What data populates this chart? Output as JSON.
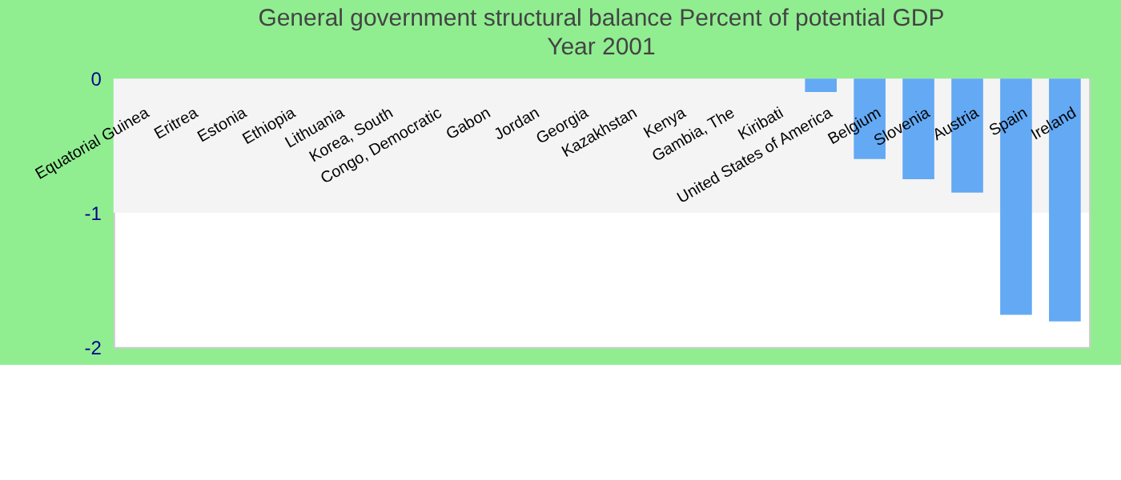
{
  "chart_data": {
    "type": "bar",
    "title": "General government structural balance  Percent of potential GDP",
    "subtitle": "Year 2001",
    "categories": [
      "Equatorial Guinea",
      "Eritrea",
      "Estonia",
      "Ethiopia",
      "Lithuania",
      "Korea, South",
      "Congo, Democratic",
      "Gabon",
      "Jordan",
      "Georgia",
      "Kazakhstan",
      "Kenya",
      "Gambia, The",
      "Kiribati",
      "United States of America",
      "Belgium",
      "Slovenia",
      "Austria",
      "Spain",
      "Ireland"
    ],
    "values": [
      null,
      null,
      null,
      null,
      null,
      null,
      null,
      null,
      null,
      null,
      null,
      null,
      null,
      null,
      -0.1,
      -0.6,
      -0.75,
      -0.85,
      -1.76,
      -1.81
    ],
    "color": "#63a9f4",
    "ylim": [
      -2,
      0
    ],
    "yticks": [
      0,
      -1,
      -2
    ],
    "bands": [
      {
        "axis": "y",
        "from": 0,
        "to": -1,
        "color": "#f4f4f4"
      }
    ]
  }
}
